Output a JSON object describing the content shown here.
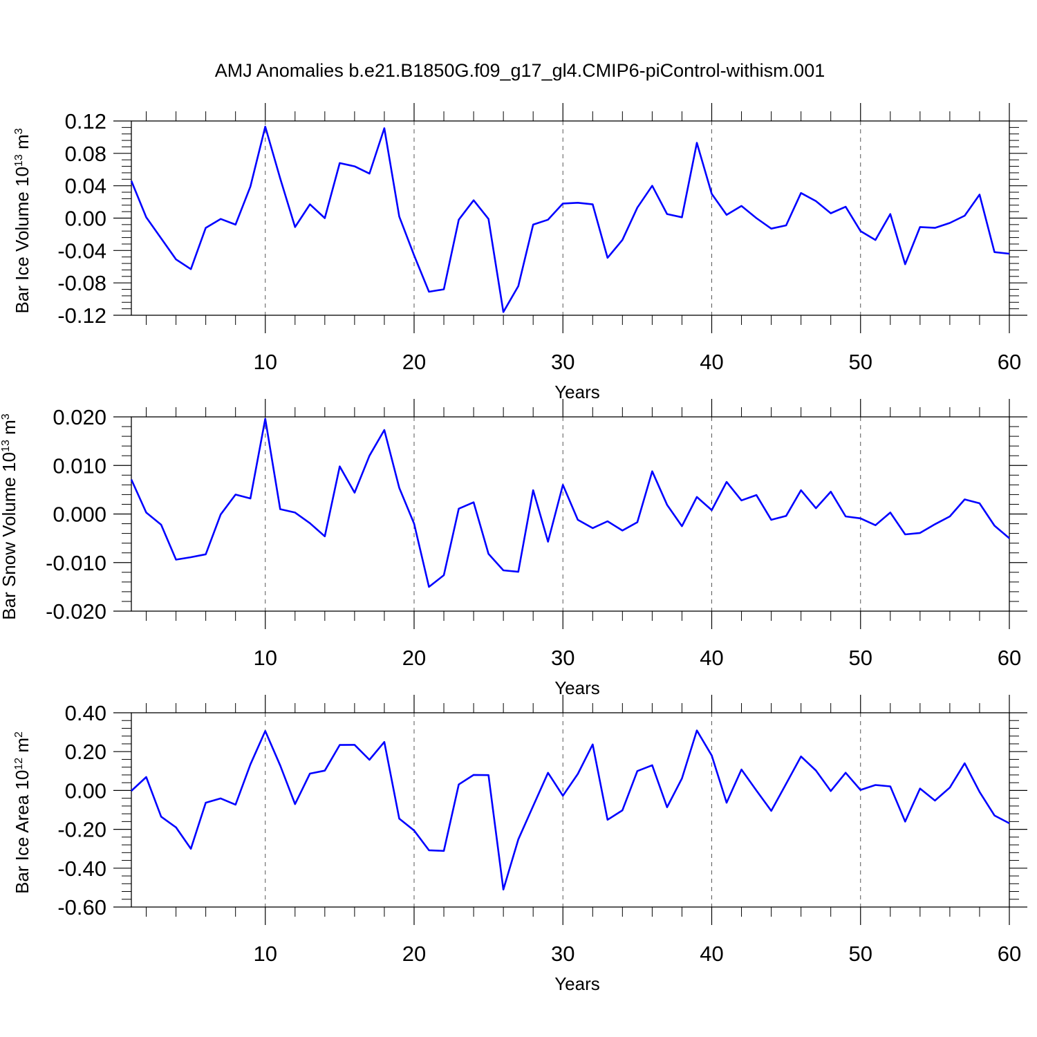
{
  "title": "AMJ Anomalies b.e21.B1850G.f09_g17_gl4.CMIP6-piControl-withism.001",
  "line_color": "#0000ff",
  "chart_data": [
    {
      "type": "line",
      "title": "AMJ Anomalies b.e21.B1850G.f09_g17_gl4.CMIP6-piControl-withism.001",
      "xlabel": "Years",
      "ylabel": {
        "base": "Bar Ice Volume 10",
        "exp1": "13",
        "mid": " m",
        "exp2": "3"
      },
      "xlim": [
        1,
        60
      ],
      "ylim": [
        -0.12,
        0.12
      ],
      "xticks": [
        10,
        20,
        30,
        40,
        50,
        60
      ],
      "xtick_labels": [
        "10",
        "20",
        "30",
        "40",
        "50",
        "60"
      ],
      "yticks": [
        -0.12,
        -0.08,
        -0.04,
        0.0,
        0.04,
        0.08,
        0.12
      ],
      "ytick_labels": [
        "-0.12",
        "-0.08",
        "-0.04",
        "0.00",
        "0.04",
        "0.08",
        "0.12"
      ],
      "grid": "dashed vertical at major x ticks",
      "series": [
        {
          "x": [
            1,
            2,
            3,
            4,
            5,
            6,
            7,
            8,
            9,
            10,
            11,
            12,
            13,
            14,
            15,
            16,
            17,
            18,
            19,
            20,
            21,
            22,
            23,
            24,
            25,
            26,
            27,
            28,
            29,
            30,
            31,
            32,
            33,
            34,
            35,
            36,
            37,
            38,
            39,
            40,
            41,
            42,
            43,
            44,
            45,
            46,
            47,
            48,
            49,
            50,
            51,
            52,
            53,
            54,
            55,
            56,
            57,
            58,
            59,
            60
          ],
          "y": [
            0.046,
            0.001,
            -0.025,
            -0.051,
            -0.063,
            -0.012,
            -0.001,
            -0.008,
            0.039,
            0.113,
            0.049,
            -0.011,
            0.017,
            0.0,
            0.068,
            0.064,
            0.055,
            0.111,
            0.002,
            -0.046,
            -0.091,
            -0.088,
            -0.002,
            0.022,
            -0.001,
            -0.116,
            -0.084,
            -0.008,
            -0.002,
            0.018,
            0.019,
            0.017,
            -0.049,
            -0.027,
            0.013,
            0.04,
            0.005,
            0.001,
            0.093,
            0.03,
            0.004,
            0.015,
            0.0,
            -0.013,
            -0.009,
            0.031,
            0.021,
            0.006,
            0.014,
            -0.016,
            -0.027,
            0.005,
            -0.057,
            -0.011,
            -0.012,
            -0.006,
            0.003,
            0.029,
            -0.042,
            -0.044
          ]
        }
      ]
    },
    {
      "type": "line",
      "xlabel": "Years",
      "ylabel": {
        "base": "Bar Snow Volume 10",
        "exp1": "13",
        "mid": " m",
        "exp2": "3"
      },
      "xlim": [
        1,
        60
      ],
      "ylim": [
        -0.02,
        0.02
      ],
      "xticks": [
        10,
        20,
        30,
        40,
        50,
        60
      ],
      "xtick_labels": [
        "10",
        "20",
        "30",
        "40",
        "50",
        "60"
      ],
      "yticks": [
        -0.02,
        -0.01,
        0.0,
        0.01,
        0.02
      ],
      "ytick_labels": [
        "-0.020",
        "-0.010",
        "0.000",
        "0.010",
        "0.020"
      ],
      "grid": "dashed vertical at major x ticks",
      "series": [
        {
          "x": [
            1,
            2,
            3,
            4,
            5,
            6,
            7,
            8,
            9,
            10,
            11,
            12,
            13,
            14,
            15,
            16,
            17,
            18,
            19,
            20,
            21,
            22,
            23,
            24,
            25,
            26,
            27,
            28,
            29,
            30,
            31,
            32,
            33,
            34,
            35,
            36,
            37,
            38,
            39,
            40,
            41,
            42,
            43,
            44,
            45,
            46,
            47,
            48,
            49,
            50,
            51,
            52,
            53,
            54,
            55,
            56,
            57,
            58,
            59,
            60
          ],
          "y": [
            0.0071,
            0.0003,
            -0.0022,
            -0.0094,
            -0.0089,
            -0.0083,
            -0.0001,
            0.004,
            0.0032,
            0.0196,
            0.001,
            0.0003,
            -0.0019,
            -0.0046,
            0.0098,
            0.0044,
            0.012,
            0.0173,
            0.0054,
            -0.002,
            -0.015,
            -0.0126,
            0.0011,
            0.0024,
            -0.0082,
            -0.0116,
            -0.0119,
            0.0049,
            -0.0057,
            0.006,
            -0.0012,
            -0.0029,
            -0.0015,
            -0.0034,
            -0.0017,
            0.0088,
            0.0019,
            -0.0025,
            0.0035,
            0.0008,
            0.0066,
            0.0028,
            0.0039,
            -0.0012,
            -0.0004,
            0.0049,
            0.0012,
            0.0046,
            -0.0005,
            -0.0009,
            -0.0023,
            0.0003,
            -0.0042,
            -0.0039,
            -0.0021,
            -0.0005,
            0.003,
            0.0022,
            -0.0024,
            -0.005
          ]
        }
      ]
    },
    {
      "type": "line",
      "xlabel": "Years",
      "ylabel": {
        "base": "Bar Ice Area 10",
        "exp1": "12",
        "mid": " m",
        "exp2": "2"
      },
      "xlim": [
        1,
        60
      ],
      "ylim": [
        -0.6,
        0.4
      ],
      "xticks": [
        10,
        20,
        30,
        40,
        50,
        60
      ],
      "xtick_labels": [
        "10",
        "20",
        "30",
        "40",
        "50",
        "60"
      ],
      "yticks": [
        -0.6,
        -0.4,
        -0.2,
        0.0,
        0.2,
        0.4
      ],
      "ytick_labels": [
        "-0.60",
        "-0.40",
        "-0.20",
        "0.00",
        "0.20",
        "0.40"
      ],
      "grid": "dashed vertical at major x ticks",
      "series": [
        {
          "x": [
            1,
            2,
            3,
            4,
            5,
            6,
            7,
            8,
            9,
            10,
            11,
            12,
            13,
            14,
            15,
            16,
            17,
            18,
            19,
            20,
            21,
            22,
            23,
            24,
            25,
            26,
            27,
            28,
            29,
            30,
            31,
            32,
            33,
            34,
            35,
            36,
            37,
            38,
            39,
            40,
            41,
            42,
            43,
            44,
            45,
            46,
            47,
            48,
            49,
            50,
            51,
            52,
            53,
            54,
            55,
            56,
            57,
            58,
            59,
            60
          ],
          "y": [
            -0.002,
            0.069,
            -0.135,
            -0.19,
            -0.3,
            -0.063,
            -0.041,
            -0.073,
            0.134,
            0.306,
            0.129,
            -0.07,
            0.087,
            0.102,
            0.234,
            0.235,
            0.158,
            0.25,
            -0.145,
            -0.206,
            -0.308,
            -0.311,
            0.031,
            0.08,
            0.079,
            -0.51,
            -0.252,
            -0.08,
            0.091,
            -0.027,
            0.085,
            0.237,
            -0.151,
            -0.102,
            0.1,
            0.13,
            -0.086,
            0.062,
            0.309,
            0.18,
            -0.063,
            0.108,
            0.0,
            -0.105,
            0.034,
            0.175,
            0.103,
            -0.003,
            0.091,
            0.003,
            0.028,
            0.021,
            -0.16,
            0.01,
            -0.052,
            0.015,
            0.14,
            -0.007,
            -0.129,
            -0.169
          ]
        }
      ]
    }
  ]
}
